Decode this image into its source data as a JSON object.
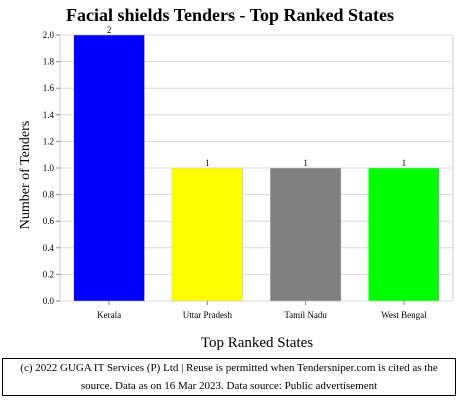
{
  "chart_data": {
    "type": "bar",
    "title": "Facial shields Tenders - Top Ranked States",
    "xlabel": "Top Ranked States",
    "ylabel": "Number of Tenders",
    "categories": [
      "Kerala",
      "Uttar Pradesh",
      "Tamil Nadu",
      "West Bengal"
    ],
    "values": [
      2,
      1,
      1,
      1
    ],
    "data_labels": [
      "2",
      "1",
      "1",
      "1"
    ],
    "colors": [
      "#0000ff",
      "#ffff00",
      "#808080",
      "#00ff00"
    ],
    "ylim": [
      0,
      2.0
    ],
    "yticks": [
      "0.0",
      "0.2",
      "0.4",
      "0.6",
      "0.8",
      "1.0",
      "1.2",
      "1.4",
      "1.6",
      "1.8",
      "2.0"
    ],
    "grid": true,
    "legend": "none"
  },
  "footer": {
    "line1": "(c) 2022 GUGA IT Services (P) Ltd | Reuse is permitted when Tendersniper.com is cited as the",
    "line2": "source. Data as on 16 Mar 2023. Data source: Public advertisement"
  }
}
